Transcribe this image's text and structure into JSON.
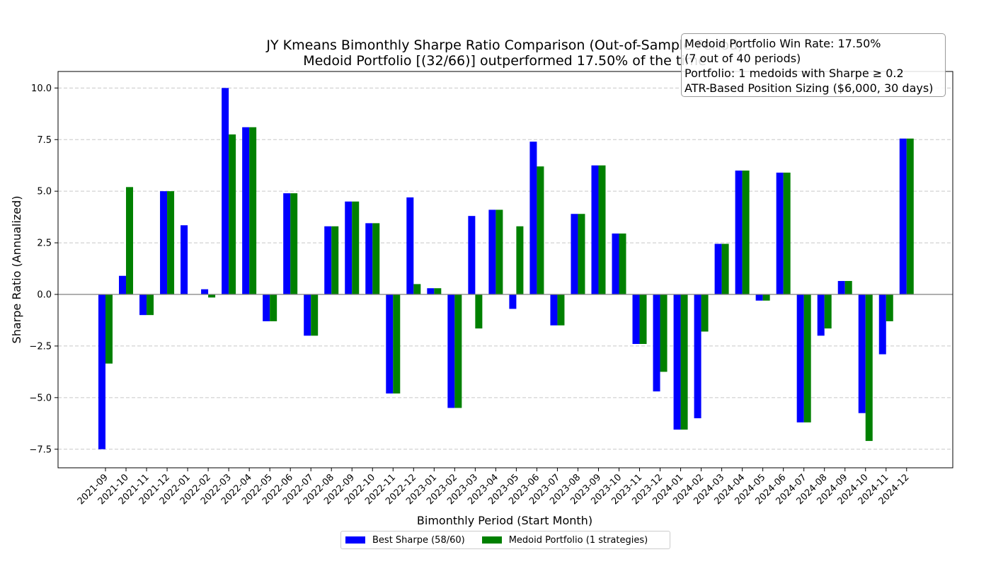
{
  "chart_data": {
    "type": "bar",
    "title": "JY Kmeans Bimonthly Sharpe Ratio Comparison (Out-of-Sample Period)",
    "subtitle": "Medoid Portfolio [(32/66)] outperformed 17.50% of the time",
    "xlabel": "Bimonthly Period (Start Month)",
    "ylabel": "Sharpe Ratio (Annualized)",
    "ylim": [
      -8.4,
      10.8
    ],
    "yticks": [
      -7.5,
      -5.0,
      -2.5,
      0.0,
      2.5,
      5.0,
      7.5,
      10.0
    ],
    "ytick_labels": [
      "−7.5",
      "−5.0",
      "−2.5",
      "0.0",
      "2.5",
      "5.0",
      "7.5",
      "10.0"
    ],
    "grid": "y-dashed",
    "legend_placement": "bottom-center",
    "categories": [
      "2021-09",
      "2021-10",
      "2021-11",
      "2021-12",
      "2022-01",
      "2022-02",
      "2022-03",
      "2022-04",
      "2022-05",
      "2022-06",
      "2022-07",
      "2022-08",
      "2022-09",
      "2022-10",
      "2022-11",
      "2022-12",
      "2023-01",
      "2023-02",
      "2023-03",
      "2023-04",
      "2023-05",
      "2023-06",
      "2023-07",
      "2023-08",
      "2023-09",
      "2023-10",
      "2023-11",
      "2023-12",
      "2024-01",
      "2024-02",
      "2024-03",
      "2024-04",
      "2024-05",
      "2024-06",
      "2024-07",
      "2024-08",
      "2024-09",
      "2024-10",
      "2024-11",
      "2024-12"
    ],
    "series": [
      {
        "name": "Best Sharpe (58/60)",
        "color": "#0000ff",
        "values": [
          -7.5,
          0.9,
          -1.0,
          5.0,
          3.35,
          0.25,
          10.0,
          8.1,
          -1.3,
          4.9,
          -2.0,
          3.3,
          4.5,
          3.45,
          -4.8,
          4.7,
          0.3,
          -5.5,
          3.8,
          4.1,
          -0.7,
          7.4,
          -1.5,
          3.9,
          6.25,
          2.95,
          -2.4,
          -4.7,
          -6.55,
          -6.0,
          2.45,
          6.0,
          -0.3,
          5.9,
          -6.2,
          -2.0,
          0.65,
          -5.75,
          -2.9,
          7.55
        ]
      },
      {
        "name": "Medoid Portfolio (1 strategies)",
        "color": "#008000",
        "values": [
          -3.35,
          5.2,
          -1.0,
          5.0,
          0.0,
          -0.15,
          7.75,
          8.1,
          -1.3,
          4.9,
          -2.0,
          3.3,
          4.5,
          3.45,
          -4.8,
          0.5,
          0.3,
          -5.5,
          -1.65,
          4.1,
          3.3,
          6.2,
          -1.5,
          3.9,
          6.25,
          2.95,
          -2.4,
          -3.75,
          -6.55,
          -1.8,
          2.45,
          6.0,
          -0.3,
          5.9,
          -6.2,
          -1.65,
          0.65,
          -7.1,
          -1.3,
          7.55
        ]
      }
    ],
    "annotation": {
      "lines": [
        "Medoid Portfolio Win Rate: 17.50%",
        "(7 out of 40 periods)",
        "Portfolio: 1 medoids with Sharpe ≥ 0.2",
        "ATR-Based Position Sizing ($6,000, 30 days)"
      ],
      "placement": "top-right"
    }
  }
}
